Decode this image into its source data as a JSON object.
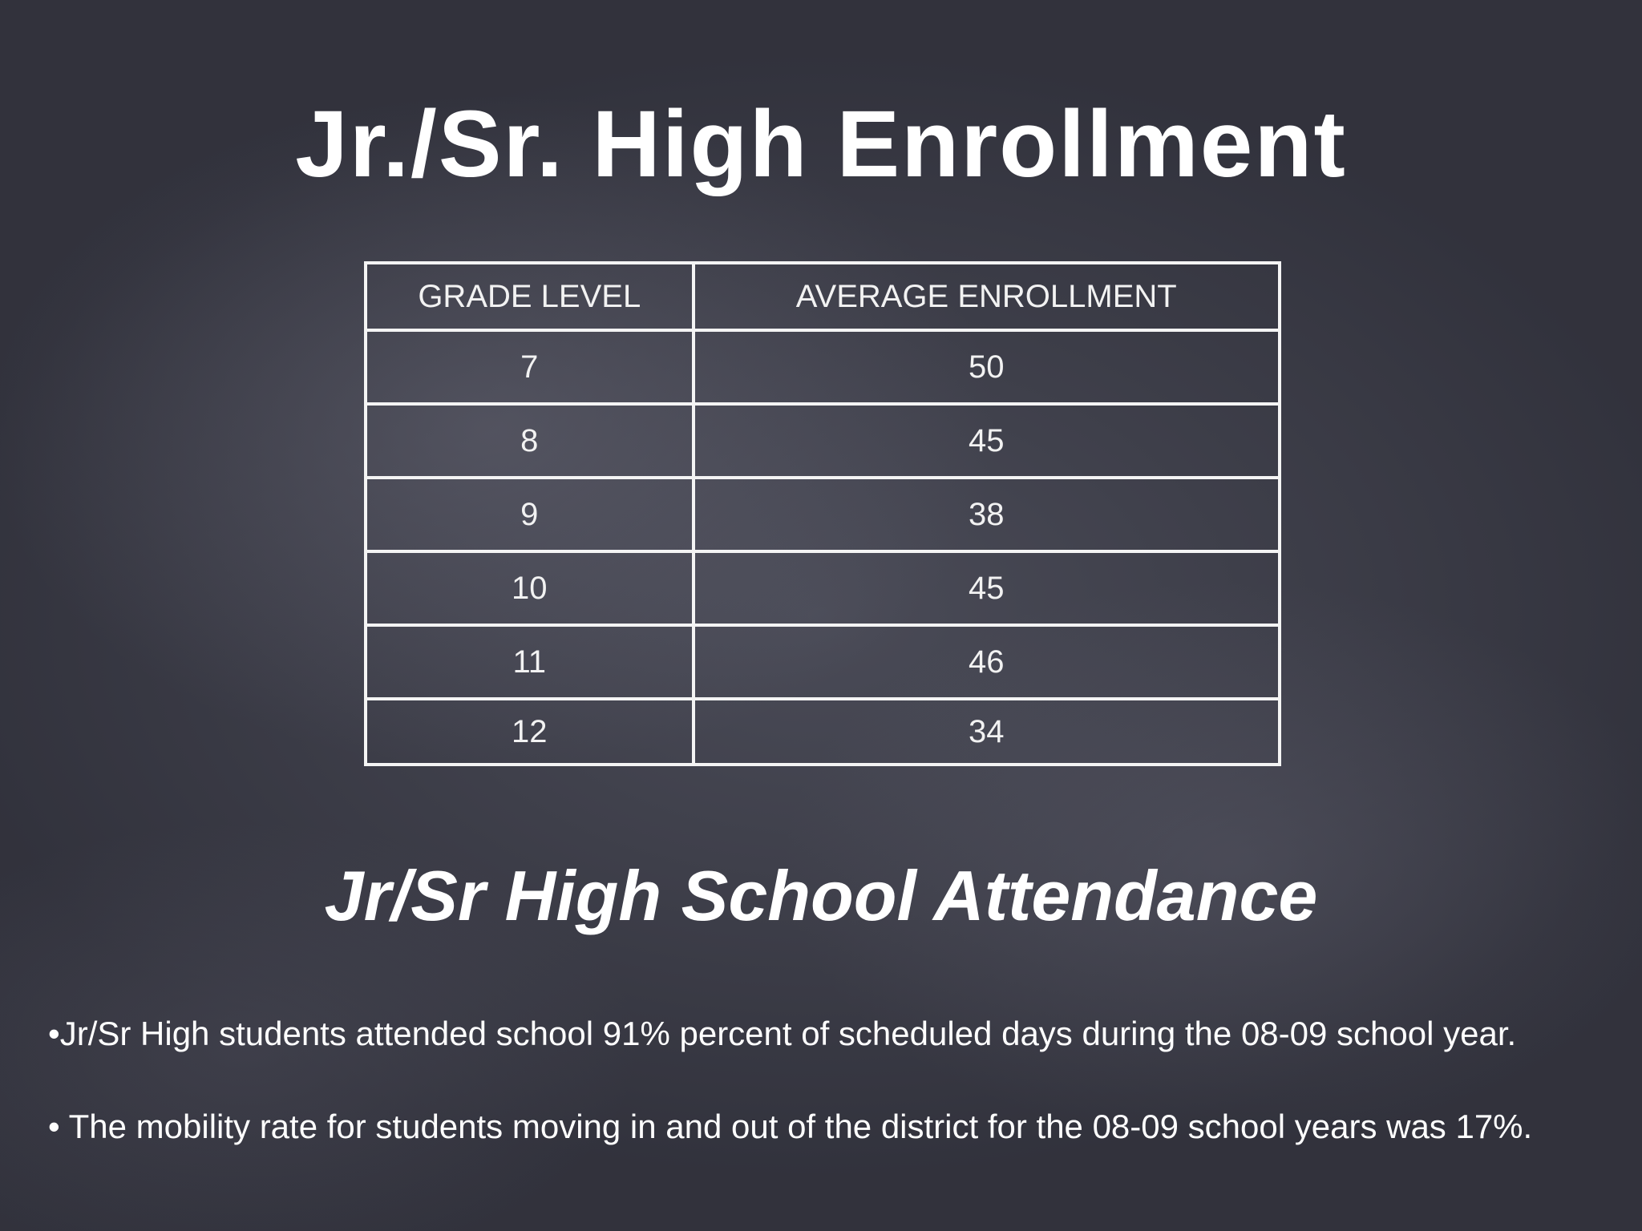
{
  "title": "Jr./Sr. High Enrollment",
  "table": {
    "headers": [
      "GRADE LEVEL",
      "AVERAGE ENROLLMENT"
    ],
    "rows": [
      [
        "7",
        "50"
      ],
      [
        "8",
        "45"
      ],
      [
        "9",
        "38"
      ],
      [
        "10",
        "45"
      ],
      [
        "11",
        "46"
      ],
      [
        "12",
        "34"
      ]
    ]
  },
  "attendance": {
    "heading": "Jr/Sr High School Attendance",
    "bullets": [
      "•Jr/Sr High students attended school 91% percent of scheduled days during the 08-09 school year.",
      "• The mobility rate for students moving in and out of the district for the 08-09 school years was 17%."
    ]
  }
}
